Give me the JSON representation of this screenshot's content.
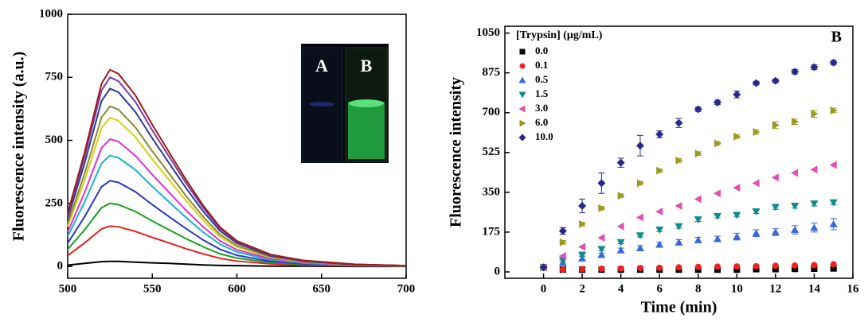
{
  "chart_data": [
    {
      "type": "line",
      "ylabel": "Fluorescence intensity (a.u.)",
      "inset_labels": [
        "A",
        "B"
      ],
      "x": [
        500,
        510,
        520,
        525,
        530,
        540,
        550,
        560,
        570,
        580,
        590,
        600,
        620,
        640,
        670,
        700
      ],
      "xlim": [
        500,
        700
      ],
      "xticks": [
        500,
        550,
        600,
        650,
        700
      ],
      "ylim": [
        -47,
        1000
      ],
      "yticks": [
        0,
        250,
        500,
        750,
        1000
      ],
      "series": [
        {
          "color": "#000000",
          "values": [
            5,
            12,
            19,
            20,
            20,
            17,
            14,
            12,
            9,
            6,
            4,
            3,
            1,
            1,
            0,
            0
          ]
        },
        {
          "color": "#e8201c",
          "values": [
            43,
            93,
            149,
            160,
            157,
            139,
            115,
            93,
            70,
            50,
            32,
            21,
            10,
            5,
            2,
            1
          ]
        },
        {
          "color": "#1aa024",
          "values": [
            68,
            145,
            233,
            250,
            245,
            218,
            180,
            145,
            110,
            78,
            50,
            33,
            15,
            8,
            3,
            1
          ]
        },
        {
          "color": "#2a36c8",
          "values": [
            92,
            197,
            316,
            340,
            333,
            296,
            245,
            197,
            150,
            105,
            68,
            44,
            20,
            10,
            3,
            1
          ]
        },
        {
          "color": "#14b4c8",
          "values": [
            119,
            255,
            409,
            440,
            431,
            383,
            317,
            255,
            194,
            136,
            88,
            57,
            26,
            13,
            4,
            2
          ]
        },
        {
          "color": "#e030d0",
          "values": [
            136,
            293,
            470,
            505,
            495,
            439,
            364,
            293,
            222,
            157,
            101,
            66,
            30,
            15,
            5,
            2
          ]
        },
        {
          "color": "#d8d010",
          "values": [
            159,
            342,
            549,
            590,
            578,
            513,
            425,
            342,
            260,
            183,
            118,
            77,
            35,
            18,
            6,
            2
          ]
        },
        {
          "color": "#8a8a30",
          "values": [
            171,
            368,
            591,
            635,
            622,
            552,
            457,
            368,
            279,
            197,
            127,
            83,
            38,
            19,
            6,
            3
          ]
        },
        {
          "color": "#2a3a98",
          "values": [
            190,
            409,
            656,
            705,
            691,
            613,
            508,
            409,
            310,
            219,
            141,
            92,
            42,
            21,
            7,
            3
          ]
        },
        {
          "color": "#7a3aa8",
          "values": [
            203,
            435,
            698,
            750,
            735,
            653,
            540,
            435,
            330,
            233,
            150,
            98,
            45,
            23,
            8,
            3
          ]
        },
        {
          "color": "#a01818",
          "values": [
            211,
            452,
            725,
            780,
            764,
            679,
            562,
            452,
            343,
            242,
            156,
            101,
            47,
            23,
            8,
            3
          ]
        }
      ]
    },
    {
      "type": "scatter",
      "xlabel": "Time (min)",
      "ylabel": "Fluorescence intensity",
      "panel_label": "B",
      "legend_title": "[Trypsin] (μg/mL)",
      "x": [
        0,
        1,
        2,
        3,
        4,
        5,
        6,
        7,
        8,
        9,
        10,
        11,
        12,
        13,
        14,
        15
      ],
      "xlim": [
        -2,
        16
      ],
      "xticks": [
        0,
        2,
        4,
        6,
        8,
        10,
        12,
        14,
        16
      ],
      "ylim": [
        -28,
        1080
      ],
      "yticks": [
        0,
        175,
        350,
        525,
        700,
        875,
        1050
      ],
      "series": [
        {
          "name": "0.0",
          "color": "#000000",
          "marker": "square",
          "values": [
            20,
            10,
            10,
            10,
            10,
            10,
            10,
            10,
            10,
            10,
            10,
            12,
            12,
            13,
            14,
            15
          ]
        },
        {
          "name": "0.1",
          "color": "#f02020",
          "marker": "circle",
          "values": [
            20,
            10,
            12,
            14,
            15,
            17,
            18,
            20,
            22,
            23,
            24,
            25,
            27,
            28,
            30,
            33
          ]
        },
        {
          "name": "0.5",
          "color": "#3a6ad8",
          "marker": "triangle-up",
          "values": [
            20,
            40,
            60,
            75,
            95,
            105,
            120,
            130,
            140,
            145,
            155,
            170,
            175,
            185,
            195,
            210
          ],
          "errors": [
            5,
            5,
            8,
            8,
            10,
            10,
            10,
            12,
            12,
            12,
            15,
            15,
            15,
            18,
            20,
            25
          ]
        },
        {
          "name": "1.5",
          "color": "#108a8a",
          "marker": "triangle-down",
          "values": [
            20,
            50,
            75,
            100,
            130,
            160,
            185,
            200,
            230,
            245,
            250,
            265,
            285,
            290,
            300,
            305
          ],
          "errors": [
            5,
            5,
            5,
            6,
            6,
            6,
            8,
            8,
            8,
            8,
            8,
            8,
            10,
            10,
            10,
            10
          ]
        },
        {
          "name": "3.0",
          "color": "#e050b0",
          "marker": "triangle-left",
          "values": [
            20,
            70,
            110,
            150,
            200,
            240,
            265,
            290,
            320,
            345,
            370,
            390,
            415,
            435,
            450,
            470
          ]
        },
        {
          "name": "6.0",
          "color": "#9a9a20",
          "marker": "triangle-right",
          "values": [
            20,
            130,
            210,
            280,
            335,
            390,
            445,
            490,
            520,
            565,
            595,
            615,
            645,
            660,
            695,
            710
          ],
          "errors": [
            5,
            8,
            8,
            8,
            8,
            8,
            8,
            8,
            8,
            8,
            8,
            10,
            15,
            12,
            15,
            10
          ]
        },
        {
          "name": "10.0",
          "color": "#28288a",
          "marker": "diamond",
          "values": [
            20,
            180,
            290,
            390,
            480,
            555,
            605,
            655,
            715,
            745,
            780,
            830,
            840,
            880,
            900,
            920
          ],
          "errors": [
            5,
            15,
            30,
            45,
            20,
            45,
            15,
            20,
            10,
            10,
            15,
            8,
            8,
            10,
            10,
            10
          ]
        }
      ]
    }
  ]
}
